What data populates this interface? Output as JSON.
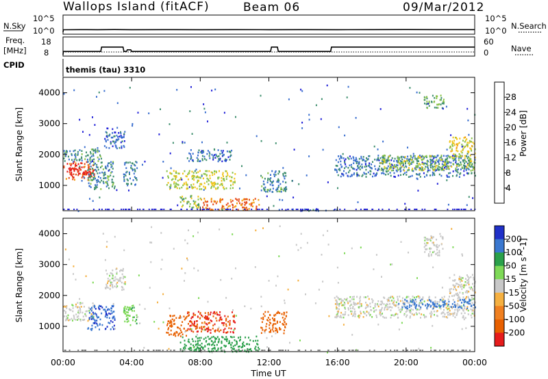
{
  "header": {
    "station": "Wallops Island (fitACF)",
    "beam": "Beam 06",
    "date": "09/Mar/2012"
  },
  "labels": {
    "nsky": "N.Sky",
    "nsearch": "N.Search",
    "freq_1": "Freq.",
    "freq_2": "[MHz]",
    "nave": "Nave",
    "cpid": "CPID",
    "cpid_value": "themis (tau) 3310",
    "exp_ticks": [
      "10^5",
      "10^0"
    ],
    "freq_ticks": [
      "18",
      "8"
    ],
    "nave_ticks": [
      "60",
      "0"
    ]
  },
  "x_axis": {
    "label": "Time UT",
    "ticks": [
      "00:00",
      "04:00",
      "08:00",
      "12:00",
      "16:00",
      "20:00",
      "00:00"
    ],
    "range_hours": [
      0,
      24
    ]
  },
  "colors": {
    "power": [
      "#2020d8",
      "#3a6fcf",
      "#3f8f6e",
      "#8bc34a",
      "#f0c419",
      "#f39c12",
      "#e64a19",
      "#e61c1c"
    ],
    "velocity": [
      "#2030c8",
      "#3a78d0",
      "#2aa04a",
      "#7ed957",
      "#c8c8c8",
      "#f5b041",
      "#f08020",
      "#e86000",
      "#e61c1c"
    ]
  },
  "chart_data": [
    {
      "type": "line",
      "title": "N.Sky / N.Search",
      "y_scale": "log",
      "ytick_labels": [
        "10^5",
        "10^0"
      ],
      "series": [
        {
          "name": "N.Sky",
          "x": [
            0,
            0.02,
            1,
            2,
            3,
            4,
            6,
            8,
            10,
            12,
            14,
            16,
            18,
            20,
            22,
            24
          ],
          "y": [
            1,
            12,
            14,
            13,
            15,
            13,
            14,
            13,
            14,
            13,
            14,
            13,
            14,
            15,
            14,
            14
          ]
        }
      ]
    },
    {
      "type": "line",
      "title": "Freq. [MHz] / Nave",
      "ylim": [
        8,
        18
      ],
      "ytick_labels": [
        "18",
        "8"
      ],
      "series": [
        {
          "name": "Freq.",
          "x": [
            0,
            0.02,
            2.2,
            2.25,
            3.5,
            3.55,
            3.7,
            3.75,
            3.95,
            4.0,
            12.1,
            12.15,
            12.5,
            12.55,
            15.6,
            15.65,
            24
          ],
          "y": [
            8,
            11,
            11,
            15,
            15,
            11,
            11,
            12.5,
            12.5,
            11,
            11,
            15,
            15,
            11,
            11,
            15,
            15
          ]
        }
      ]
    },
    {
      "type": "heatmap",
      "title": "Power [dB]",
      "xlabel": "Time UT",
      "ylabel": "Slant Range [km]",
      "xlim": [
        0,
        24
      ],
      "ylim": [
        180,
        4500
      ],
      "yticks": [
        1000,
        2000,
        3000,
        4000
      ],
      "colorbar": {
        "label": "Power [dB]",
        "ticks": [
          "4",
          "8",
          "12",
          "16",
          "20",
          "24",
          "28"
        ],
        "range": [
          0,
          32
        ]
      },
      "regions": [
        {
          "t": [
            0.0,
            1.8
          ],
          "r": [
            1200,
            1800
          ],
          "v": 26
        },
        {
          "t": [
            0.3,
            1.6
          ],
          "r": [
            1300,
            1600
          ],
          "v": 30
        },
        {
          "t": [
            0.0,
            2.2
          ],
          "r": [
            1800,
            2200
          ],
          "v": 10
        },
        {
          "t": [
            1.4,
            3.0
          ],
          "r": [
            900,
            1800
          ],
          "v": 9
        },
        {
          "t": [
            2.4,
            3.6
          ],
          "r": [
            2200,
            2900
          ],
          "v": 6
        },
        {
          "t": [
            3.5,
            4.3
          ],
          "r": [
            1000,
            1800
          ],
          "v": 8
        },
        {
          "t": [
            6.0,
            10.0
          ],
          "r": [
            900,
            1500
          ],
          "v": 16
        },
        {
          "t": [
            6.8,
            8.0
          ],
          "r": [
            280,
            700
          ],
          "v": 14
        },
        {
          "t": [
            8.0,
            11.4
          ],
          "r": [
            220,
            600
          ],
          "v": 24
        },
        {
          "t": [
            7.2,
            9.8
          ],
          "r": [
            1800,
            2200
          ],
          "v": 7
        },
        {
          "t": [
            11.5,
            13.0
          ],
          "r": [
            800,
            1500
          ],
          "v": 9
        },
        {
          "t": [
            12.5,
            16.0
          ],
          "r": [
            200,
            260
          ],
          "v": 6
        },
        {
          "t": [
            15.8,
            24.0
          ],
          "r": [
            1300,
            2000
          ],
          "v": 7
        },
        {
          "t": [
            18.5,
            24.0
          ],
          "r": [
            1500,
            2000
          ],
          "v": 14
        },
        {
          "t": [
            22.5,
            24.0
          ],
          "r": [
            2000,
            2600
          ],
          "v": 17
        },
        {
          "t": [
            21.0,
            22.2
          ],
          "r": [
            3500,
            3950
          ],
          "v": 12
        }
      ]
    },
    {
      "type": "heatmap",
      "title": "Velocity [m s^-1]",
      "xlabel": "Time UT",
      "ylabel": "Slant Range [km]",
      "xlim": [
        0,
        24
      ],
      "ylim": [
        180,
        4500
      ],
      "yticks": [
        1000,
        2000,
        3000,
        4000
      ],
      "colorbar": {
        "label": "Velocity [m s^-1]",
        "ticks": [
          "200",
          "100",
          "50",
          "15",
          "-15",
          "-50",
          "-100",
          "-200"
        ],
        "range": [
          -250,
          250
        ]
      },
      "regions": [
        {
          "t": [
            0.0,
            1.8
          ],
          "r": [
            1200,
            1800
          ],
          "v": 0
        },
        {
          "t": [
            1.4,
            3.0
          ],
          "r": [
            900,
            1700
          ],
          "v": 190
        },
        {
          "t": [
            2.4,
            3.6
          ],
          "r": [
            2200,
            2900
          ],
          "v": 0
        },
        {
          "t": [
            3.5,
            4.3
          ],
          "r": [
            1000,
            1700
          ],
          "v": 40
        },
        {
          "t": [
            6.0,
            7.2
          ],
          "r": [
            700,
            1400
          ],
          "v": -120
        },
        {
          "t": [
            7.2,
            10.0
          ],
          "r": [
            800,
            1500
          ],
          "v": -200
        },
        {
          "t": [
            6.8,
            11.4
          ],
          "r": [
            200,
            700
          ],
          "v": 80
        },
        {
          "t": [
            11.5,
            13.0
          ],
          "r": [
            800,
            1500
          ],
          "v": -120
        },
        {
          "t": [
            15.8,
            24.0
          ],
          "r": [
            1300,
            2000
          ],
          "v": 0
        },
        {
          "t": [
            19.5,
            24.0
          ],
          "r": [
            1600,
            1900
          ],
          "v": 150
        },
        {
          "t": [
            22.5,
            24.0
          ],
          "r": [
            2000,
            2700
          ],
          "v": 0
        },
        {
          "t": [
            21.0,
            22.2
          ],
          "r": [
            3300,
            3950
          ],
          "v": 0
        }
      ]
    }
  ]
}
